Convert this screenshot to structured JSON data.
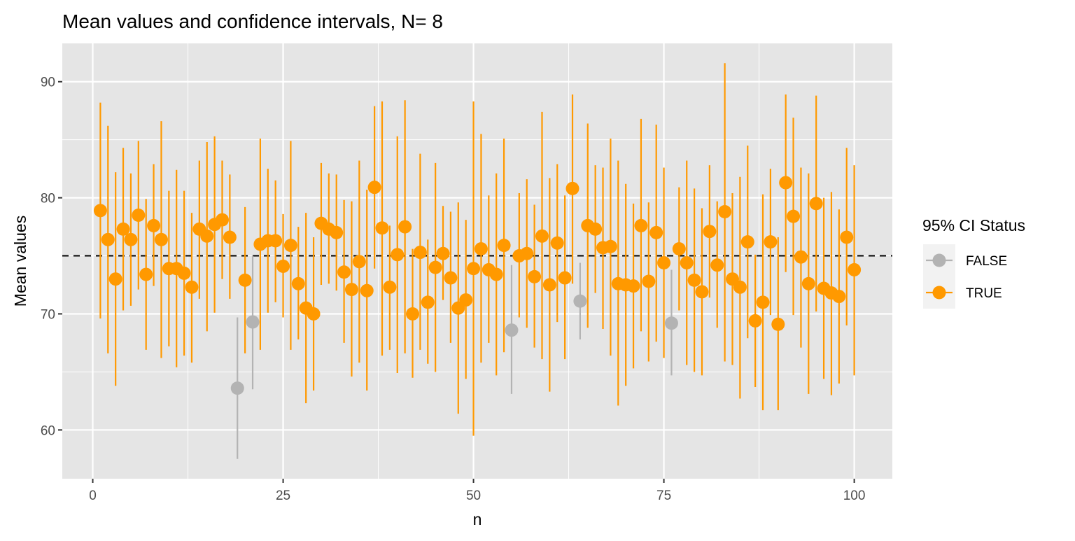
{
  "chart_data": {
    "type": "scatter",
    "title": "Mean values and confidence intervals, N= 8",
    "xlabel": "n",
    "ylabel": "Mean values",
    "xlim": [
      -4,
      105
    ],
    "ylim": [
      55.8,
      93.3
    ],
    "x_ticks": [
      0,
      25,
      50,
      75,
      100
    ],
    "y_ticks": [
      60,
      70,
      80,
      90
    ],
    "reference_line": {
      "y": 75,
      "style": "dashed",
      "color": "#000000"
    },
    "grid": true,
    "legend": {
      "title": "95% CI Status",
      "placement": "right",
      "entries": [
        {
          "label": "FALSE",
          "color": "#b3b3b3"
        },
        {
          "label": "TRUE",
          "color": "#ff9900"
        }
      ]
    },
    "colors": {
      "panel": "#e5e5e5",
      "grid": "#ffffff",
      "false": "#b3b3b3",
      "true": "#ff9900"
    },
    "points": [
      {
        "n": 1,
        "mean": 78.9,
        "lower": 69.6,
        "upper": 88.2,
        "status": "TRUE"
      },
      {
        "n": 2,
        "mean": 76.4,
        "lower": 66.6,
        "upper": 86.2,
        "status": "TRUE"
      },
      {
        "n": 3,
        "mean": 73.0,
        "lower": 63.8,
        "upper": 82.2,
        "status": "TRUE"
      },
      {
        "n": 4,
        "mean": 77.3,
        "lower": 70.3,
        "upper": 84.3,
        "status": "TRUE"
      },
      {
        "n": 5,
        "mean": 76.4,
        "lower": 70.7,
        "upper": 82.1,
        "status": "TRUE"
      },
      {
        "n": 6,
        "mean": 78.5,
        "lower": 72.1,
        "upper": 84.9,
        "status": "TRUE"
      },
      {
        "n": 7,
        "mean": 73.4,
        "lower": 66.9,
        "upper": 79.9,
        "status": "TRUE"
      },
      {
        "n": 8,
        "mean": 77.6,
        "lower": 72.4,
        "upper": 82.9,
        "status": "TRUE"
      },
      {
        "n": 9,
        "mean": 76.4,
        "lower": 66.2,
        "upper": 86.6,
        "status": "TRUE"
      },
      {
        "n": 10,
        "mean": 73.9,
        "lower": 67.2,
        "upper": 80.6,
        "status": "TRUE"
      },
      {
        "n": 11,
        "mean": 73.9,
        "lower": 65.4,
        "upper": 82.4,
        "status": "TRUE"
      },
      {
        "n": 12,
        "mean": 73.5,
        "lower": 66.4,
        "upper": 80.6,
        "status": "TRUE"
      },
      {
        "n": 13,
        "mean": 72.3,
        "lower": 65.8,
        "upper": 78.7,
        "status": "TRUE"
      },
      {
        "n": 14,
        "mean": 77.3,
        "lower": 71.3,
        "upper": 83.2,
        "status": "TRUE"
      },
      {
        "n": 15,
        "mean": 76.7,
        "lower": 68.5,
        "upper": 84.8,
        "status": "TRUE"
      },
      {
        "n": 16,
        "mean": 77.7,
        "lower": 70.1,
        "upper": 85.3,
        "status": "TRUE"
      },
      {
        "n": 17,
        "mean": 78.1,
        "lower": 73.0,
        "upper": 83.2,
        "status": "TRUE"
      },
      {
        "n": 18,
        "mean": 76.6,
        "lower": 71.3,
        "upper": 82.0,
        "status": "TRUE"
      },
      {
        "n": 19,
        "mean": 63.6,
        "lower": 57.5,
        "upper": 69.7,
        "status": "FALSE"
      },
      {
        "n": 20,
        "mean": 72.9,
        "lower": 66.6,
        "upper": 79.2,
        "status": "TRUE"
      },
      {
        "n": 21,
        "mean": 69.3,
        "lower": 63.5,
        "upper": 75.0,
        "status": "FALSE"
      },
      {
        "n": 22,
        "mean": 76.0,
        "lower": 66.9,
        "upper": 85.1,
        "status": "TRUE"
      },
      {
        "n": 23,
        "mean": 76.3,
        "lower": 70.1,
        "upper": 82.5,
        "status": "TRUE"
      },
      {
        "n": 24,
        "mean": 76.3,
        "lower": 71.0,
        "upper": 81.5,
        "status": "TRUE"
      },
      {
        "n": 25,
        "mean": 74.1,
        "lower": 69.7,
        "upper": 78.6,
        "status": "TRUE"
      },
      {
        "n": 26,
        "mean": 75.9,
        "lower": 66.9,
        "upper": 84.9,
        "status": "TRUE"
      },
      {
        "n": 27,
        "mean": 72.6,
        "lower": 67.8,
        "upper": 77.5,
        "status": "TRUE"
      },
      {
        "n": 28,
        "mean": 70.5,
        "lower": 62.3,
        "upper": 78.7,
        "status": "TRUE"
      },
      {
        "n": 29,
        "mean": 70.0,
        "lower": 63.4,
        "upper": 76.6,
        "status": "TRUE"
      },
      {
        "n": 30,
        "mean": 77.8,
        "lower": 72.5,
        "upper": 83.0,
        "status": "TRUE"
      },
      {
        "n": 31,
        "mean": 77.3,
        "lower": 72.6,
        "upper": 82.1,
        "status": "TRUE"
      },
      {
        "n": 32,
        "mean": 77.0,
        "lower": 72.0,
        "upper": 82.0,
        "status": "TRUE"
      },
      {
        "n": 33,
        "mean": 73.6,
        "lower": 67.5,
        "upper": 79.8,
        "status": "TRUE"
      },
      {
        "n": 34,
        "mean": 72.1,
        "lower": 64.6,
        "upper": 79.7,
        "status": "TRUE"
      },
      {
        "n": 35,
        "mean": 74.5,
        "lower": 65.8,
        "upper": 83.2,
        "status": "TRUE"
      },
      {
        "n": 36,
        "mean": 72.0,
        "lower": 63.4,
        "upper": 80.7,
        "status": "TRUE"
      },
      {
        "n": 37,
        "mean": 80.9,
        "lower": 73.9,
        "upper": 87.9,
        "status": "TRUE"
      },
      {
        "n": 38,
        "mean": 77.4,
        "lower": 66.4,
        "upper": 88.3,
        "status": "TRUE"
      },
      {
        "n": 39,
        "mean": 72.3,
        "lower": 66.9,
        "upper": 77.6,
        "status": "TRUE"
      },
      {
        "n": 40,
        "mean": 75.1,
        "lower": 64.9,
        "upper": 85.3,
        "status": "TRUE"
      },
      {
        "n": 41,
        "mean": 77.5,
        "lower": 66.6,
        "upper": 88.4,
        "status": "TRUE"
      },
      {
        "n": 42,
        "mean": 70.0,
        "lower": 64.5,
        "upper": 75.6,
        "status": "TRUE"
      },
      {
        "n": 43,
        "mean": 75.3,
        "lower": 66.9,
        "upper": 83.8,
        "status": "TRUE"
      },
      {
        "n": 44,
        "mean": 71.0,
        "lower": 65.7,
        "upper": 76.4,
        "status": "TRUE"
      },
      {
        "n": 45,
        "mean": 74.0,
        "lower": 65.0,
        "upper": 83.0,
        "status": "TRUE"
      },
      {
        "n": 46,
        "mean": 75.2,
        "lower": 71.2,
        "upper": 79.3,
        "status": "TRUE"
      },
      {
        "n": 47,
        "mean": 73.1,
        "lower": 67.5,
        "upper": 78.8,
        "status": "TRUE"
      },
      {
        "n": 48,
        "mean": 70.5,
        "lower": 61.4,
        "upper": 79.6,
        "status": "TRUE"
      },
      {
        "n": 49,
        "mean": 71.2,
        "lower": 64.4,
        "upper": 78.1,
        "status": "TRUE"
      },
      {
        "n": 50,
        "mean": 73.9,
        "lower": 59.5,
        "upper": 88.3,
        "status": "TRUE"
      },
      {
        "n": 51,
        "mean": 75.6,
        "lower": 65.8,
        "upper": 85.5,
        "status": "TRUE"
      },
      {
        "n": 52,
        "mean": 73.8,
        "lower": 67.5,
        "upper": 80.2,
        "status": "TRUE"
      },
      {
        "n": 53,
        "mean": 73.4,
        "lower": 64.7,
        "upper": 82.1,
        "status": "TRUE"
      },
      {
        "n": 54,
        "mean": 75.9,
        "lower": 66.7,
        "upper": 85.1,
        "status": "TRUE"
      },
      {
        "n": 55,
        "mean": 68.6,
        "lower": 63.1,
        "upper": 74.2,
        "status": "FALSE"
      },
      {
        "n": 56,
        "mean": 75.0,
        "lower": 69.7,
        "upper": 80.4,
        "status": "TRUE"
      },
      {
        "n": 57,
        "mean": 75.2,
        "lower": 68.8,
        "upper": 81.6,
        "status": "TRUE"
      },
      {
        "n": 58,
        "mean": 73.2,
        "lower": 67.1,
        "upper": 79.4,
        "status": "TRUE"
      },
      {
        "n": 59,
        "mean": 76.7,
        "lower": 66.1,
        "upper": 87.4,
        "status": "TRUE"
      },
      {
        "n": 60,
        "mean": 72.5,
        "lower": 63.3,
        "upper": 81.7,
        "status": "TRUE"
      },
      {
        "n": 61,
        "mean": 76.1,
        "lower": 69.3,
        "upper": 82.9,
        "status": "TRUE"
      },
      {
        "n": 62,
        "mean": 73.1,
        "lower": 66.1,
        "upper": 80.2,
        "status": "TRUE"
      },
      {
        "n": 63,
        "mean": 80.8,
        "lower": 72.6,
        "upper": 88.9,
        "status": "TRUE"
      },
      {
        "n": 64,
        "mean": 71.1,
        "lower": 67.8,
        "upper": 74.4,
        "status": "FALSE"
      },
      {
        "n": 65,
        "mean": 77.6,
        "lower": 68.8,
        "upper": 86.4,
        "status": "TRUE"
      },
      {
        "n": 66,
        "mean": 77.3,
        "lower": 71.8,
        "upper": 82.8,
        "status": "TRUE"
      },
      {
        "n": 67,
        "mean": 75.7,
        "lower": 68.7,
        "upper": 82.6,
        "status": "TRUE"
      },
      {
        "n": 68,
        "mean": 75.8,
        "lower": 66.4,
        "upper": 85.1,
        "status": "TRUE"
      },
      {
        "n": 69,
        "mean": 72.6,
        "lower": 62.1,
        "upper": 83.2,
        "status": "TRUE"
      },
      {
        "n": 70,
        "mean": 72.5,
        "lower": 63.8,
        "upper": 81.2,
        "status": "TRUE"
      },
      {
        "n": 71,
        "mean": 72.4,
        "lower": 65.3,
        "upper": 79.5,
        "status": "TRUE"
      },
      {
        "n": 72,
        "mean": 77.6,
        "lower": 68.5,
        "upper": 86.8,
        "status": "TRUE"
      },
      {
        "n": 73,
        "mean": 72.8,
        "lower": 65.9,
        "upper": 79.6,
        "status": "TRUE"
      },
      {
        "n": 74,
        "mean": 77.0,
        "lower": 67.6,
        "upper": 86.3,
        "status": "TRUE"
      },
      {
        "n": 75,
        "mean": 74.4,
        "lower": 66.2,
        "upper": 82.6,
        "status": "TRUE"
      },
      {
        "n": 76,
        "mean": 69.2,
        "lower": 64.7,
        "upper": 73.8,
        "status": "FALSE"
      },
      {
        "n": 77,
        "mean": 75.6,
        "lower": 70.3,
        "upper": 80.9,
        "status": "TRUE"
      },
      {
        "n": 78,
        "mean": 74.4,
        "lower": 65.6,
        "upper": 83.2,
        "status": "TRUE"
      },
      {
        "n": 79,
        "mean": 72.9,
        "lower": 65.0,
        "upper": 80.8,
        "status": "TRUE"
      },
      {
        "n": 80,
        "mean": 71.9,
        "lower": 64.7,
        "upper": 79.1,
        "status": "TRUE"
      },
      {
        "n": 81,
        "mean": 77.1,
        "lower": 71.4,
        "upper": 82.8,
        "status": "TRUE"
      },
      {
        "n": 82,
        "mean": 74.2,
        "lower": 68.8,
        "upper": 79.7,
        "status": "TRUE"
      },
      {
        "n": 83,
        "mean": 78.8,
        "lower": 65.9,
        "upper": 91.6,
        "status": "TRUE"
      },
      {
        "n": 84,
        "mean": 73.0,
        "lower": 65.6,
        "upper": 80.4,
        "status": "TRUE"
      },
      {
        "n": 85,
        "mean": 72.3,
        "lower": 62.7,
        "upper": 81.8,
        "status": "TRUE"
      },
      {
        "n": 86,
        "mean": 76.2,
        "lower": 67.9,
        "upper": 84.5,
        "status": "TRUE"
      },
      {
        "n": 87,
        "mean": 69.4,
        "lower": 63.7,
        "upper": 75.1,
        "status": "TRUE"
      },
      {
        "n": 88,
        "mean": 71.0,
        "lower": 61.7,
        "upper": 80.3,
        "status": "TRUE"
      },
      {
        "n": 89,
        "mean": 76.2,
        "lower": 69.9,
        "upper": 82.5,
        "status": "TRUE"
      },
      {
        "n": 90,
        "mean": 69.1,
        "lower": 61.7,
        "upper": 76.6,
        "status": "TRUE"
      },
      {
        "n": 91,
        "mean": 81.3,
        "lower": 73.6,
        "upper": 88.9,
        "status": "TRUE"
      },
      {
        "n": 92,
        "mean": 78.4,
        "lower": 69.9,
        "upper": 86.9,
        "status": "TRUE"
      },
      {
        "n": 93,
        "mean": 74.9,
        "lower": 67.1,
        "upper": 82.6,
        "status": "TRUE"
      },
      {
        "n": 94,
        "mean": 72.6,
        "lower": 63.1,
        "upper": 82.1,
        "status": "TRUE"
      },
      {
        "n": 95,
        "mean": 79.5,
        "lower": 70.2,
        "upper": 88.8,
        "status": "TRUE"
      },
      {
        "n": 96,
        "mean": 72.2,
        "lower": 64.4,
        "upper": 80.0,
        "status": "TRUE"
      },
      {
        "n": 97,
        "mean": 71.8,
        "lower": 63.0,
        "upper": 80.5,
        "status": "TRUE"
      },
      {
        "n": 98,
        "mean": 71.5,
        "lower": 64.0,
        "upper": 79.0,
        "status": "TRUE"
      },
      {
        "n": 99,
        "mean": 76.6,
        "lower": 69.0,
        "upper": 84.3,
        "status": "TRUE"
      },
      {
        "n": 100,
        "mean": 73.8,
        "lower": 64.7,
        "upper": 82.8,
        "status": "TRUE"
      }
    ]
  }
}
